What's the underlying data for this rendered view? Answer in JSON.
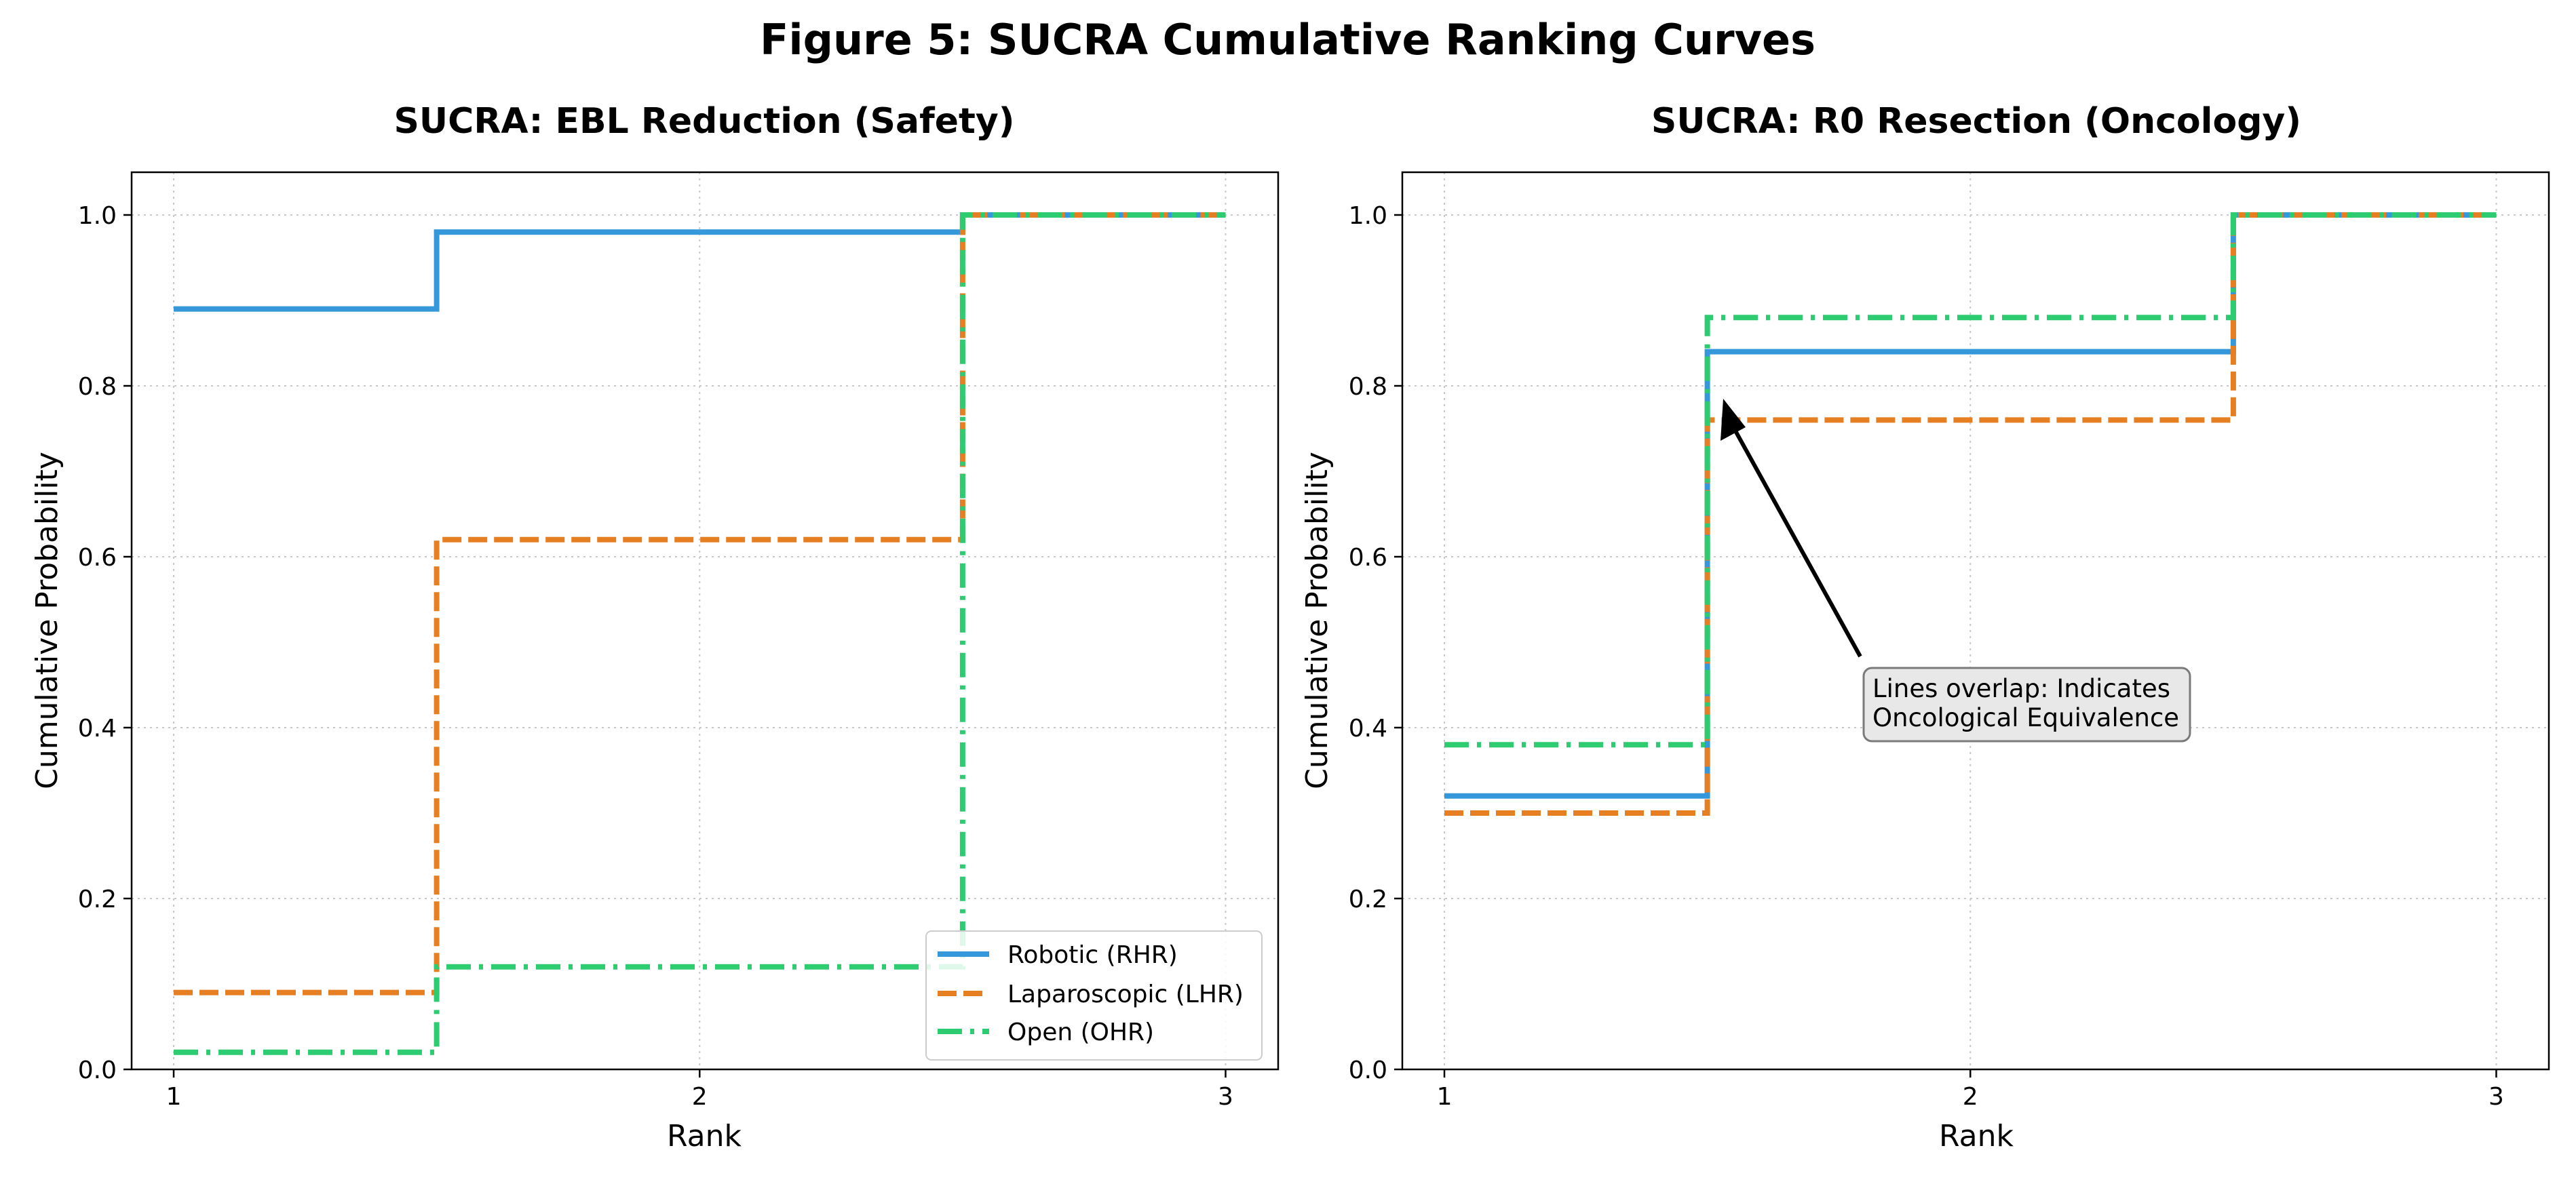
{
  "figure_title": "Figure 5: SUCRA Cumulative Ranking Curves",
  "colors": {
    "robotic": "#3498db",
    "laparoscopic": "#e67e22",
    "open": "#2ecc71"
  },
  "chart_data": [
    {
      "type": "line",
      "step": "mid",
      "title": "SUCRA: EBL Reduction (Safety)",
      "xlabel": "Rank",
      "ylabel": "Cumulative Probability",
      "x": [
        1,
        2,
        3
      ],
      "x_ticks": [
        "1",
        "2",
        "3"
      ],
      "y_ticks": [
        "0.0",
        "0.2",
        "0.4",
        "0.6",
        "0.8",
        "1.0"
      ],
      "xlim": [
        0.92,
        3.1
      ],
      "ylim": [
        0,
        1.05
      ],
      "grid": true,
      "legend_position": "lower-right",
      "series": [
        {
          "name": "Robotic (RHR)",
          "values": [
            0.89,
            0.98,
            1.0
          ],
          "color": "#3498db",
          "style": "solid"
        },
        {
          "name": "Laparoscopic (LHR)",
          "values": [
            0.09,
            0.62,
            1.0
          ],
          "color": "#e67e22",
          "style": "dashed"
        },
        {
          "name": "Open (OHR)",
          "values": [
            0.02,
            0.12,
            1.0
          ],
          "color": "#2ecc71",
          "style": "dashdot"
        }
      ]
    },
    {
      "type": "line",
      "step": "mid",
      "title": "SUCRA: R0 Resection (Oncology)",
      "xlabel": "Rank",
      "ylabel": "Cumulative Probability",
      "x": [
        1,
        2,
        3
      ],
      "x_ticks": [
        "1",
        "2",
        "3"
      ],
      "y_ticks": [
        "0.0",
        "0.2",
        "0.4",
        "0.6",
        "0.8",
        "1.0"
      ],
      "xlim": [
        0.92,
        3.1
      ],
      "ylim": [
        0,
        1.05
      ],
      "grid": true,
      "series": [
        {
          "name": "Robotic (RHR)",
          "values": [
            0.32,
            0.84,
            1.0
          ],
          "color": "#3498db",
          "style": "solid"
        },
        {
          "name": "Laparoscopic (LHR)",
          "values": [
            0.3,
            0.76,
            1.0
          ],
          "color": "#e67e22",
          "style": "dashed"
        },
        {
          "name": "Open (OHR)",
          "values": [
            0.38,
            0.88,
            1.0
          ],
          "color": "#2ecc71",
          "style": "dashdot"
        }
      ],
      "annotation": {
        "text_lines": [
          "Lines overlap: Indicates",
          "Oncological Equivalence"
        ],
        "arrow_target": {
          "x": 1.5,
          "y": 0.79
        },
        "text_anchor": {
          "x": 1.8,
          "y": 0.45
        }
      }
    }
  ]
}
